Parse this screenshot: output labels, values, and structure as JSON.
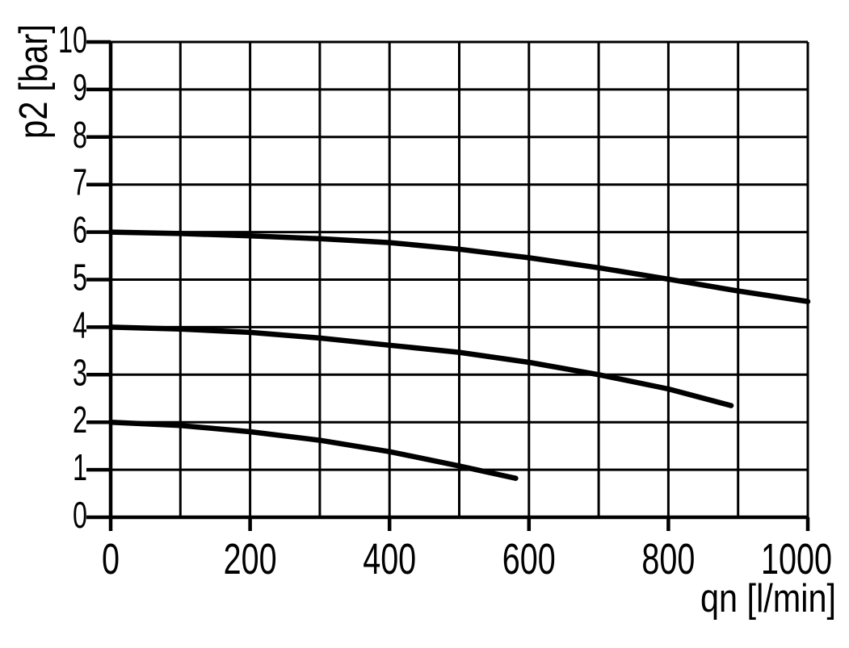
{
  "figure": {
    "background": "#ffffff",
    "ink": "#000000"
  },
  "chart_data": {
    "type": "line",
    "title": "",
    "xlabel": "qn [l/min]",
    "ylabel": "p2 [bar]",
    "xlim": [
      0,
      1000
    ],
    "ylim": [
      0,
      10
    ],
    "x_major_ticks": [
      0,
      200,
      400,
      600,
      800,
      1000
    ],
    "x_minor_grid_step": 100,
    "y_ticks": [
      0,
      1,
      2,
      3,
      4,
      5,
      6,
      7,
      8,
      9,
      10
    ],
    "grid": "on",
    "legend": "none",
    "line_color": "#000000",
    "series": [
      {
        "name": "curve_start_6_bar",
        "points": [
          [
            0,
            6.0
          ],
          [
            100,
            5.97
          ],
          [
            200,
            5.92
          ],
          [
            300,
            5.86
          ],
          [
            400,
            5.78
          ],
          [
            500,
            5.64
          ],
          [
            600,
            5.46
          ],
          [
            700,
            5.25
          ],
          [
            800,
            5.01
          ],
          [
            900,
            4.76
          ],
          [
            1000,
            4.54
          ]
        ]
      },
      {
        "name": "curve_start_4_bar",
        "points": [
          [
            0,
            4.0
          ],
          [
            100,
            3.96
          ],
          [
            200,
            3.89
          ],
          [
            300,
            3.77
          ],
          [
            400,
            3.62
          ],
          [
            500,
            3.47
          ],
          [
            600,
            3.26
          ],
          [
            700,
            3.0
          ],
          [
            800,
            2.7
          ],
          [
            890,
            2.35
          ]
        ]
      },
      {
        "name": "curve_start_2_bar",
        "points": [
          [
            0,
            2.0
          ],
          [
            100,
            1.93
          ],
          [
            200,
            1.8
          ],
          [
            300,
            1.62
          ],
          [
            400,
            1.38
          ],
          [
            500,
            1.08
          ],
          [
            581,
            0.82
          ]
        ]
      }
    ]
  }
}
